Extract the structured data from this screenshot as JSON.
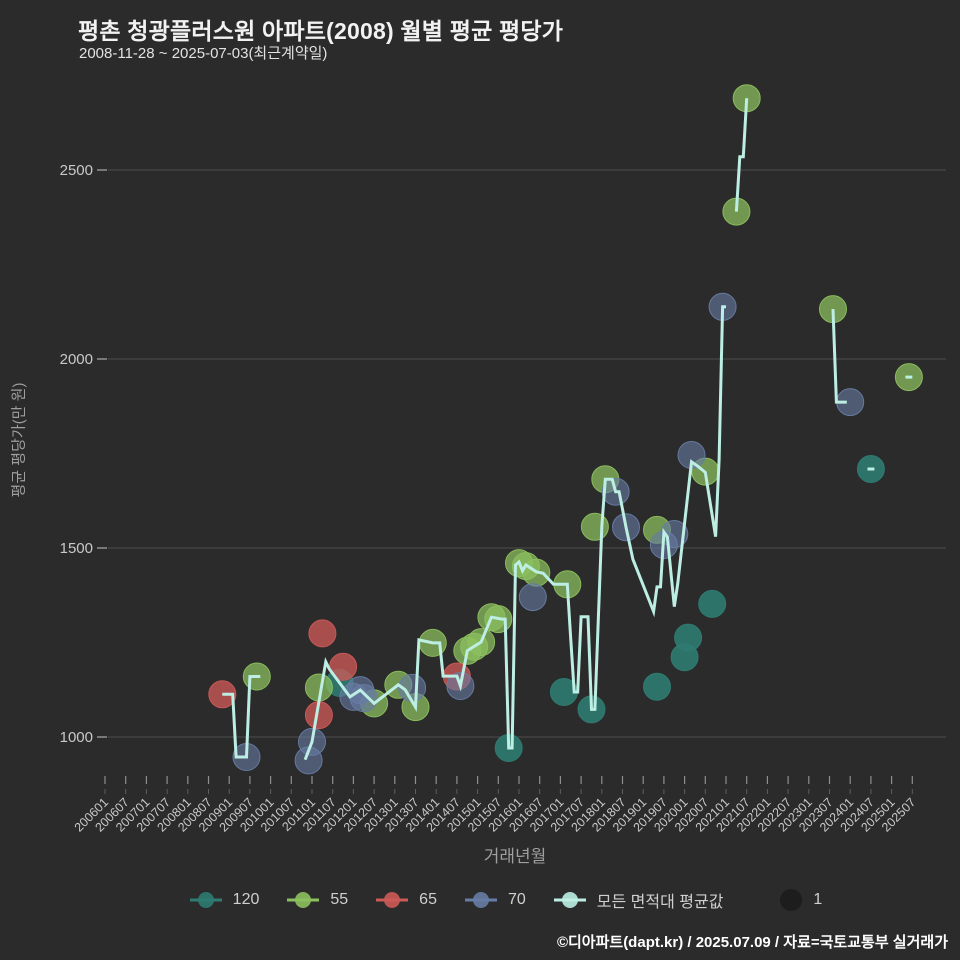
{
  "chart_data": {
    "type": "scatter",
    "title": "평촌 청광플러스원 아파트(2008) 월별 평균 평당가",
    "subtitle": "2008-11-28 ~ 2025-07-03(최근계약일)",
    "xlabel": "거래년월",
    "ylabel": "평균 평당가(만 원)",
    "ylim": [
      875,
      2725
    ],
    "xlim": [
      "200601",
      "202507"
    ],
    "grid": "horizontal",
    "legend_position": "bottom",
    "y_ticks": [
      1000,
      1500,
      2000,
      2500
    ],
    "x_ticks": [
      "200601",
      "200607",
      "200701",
      "200707",
      "200801",
      "200807",
      "200901",
      "200907",
      "201001",
      "201007",
      "201101",
      "201107",
      "201201",
      "201207",
      "201301",
      "201307",
      "201401",
      "201407",
      "201501",
      "201507",
      "201601",
      "201607",
      "201701",
      "201707",
      "201801",
      "201807",
      "201901",
      "201907",
      "202001",
      "202007",
      "202101",
      "202107",
      "202201",
      "202207",
      "202301",
      "202307",
      "202401",
      "202407",
      "202501",
      "202507"
    ],
    "series": [
      {
        "name": "120",
        "color": "#2f7b71",
        "opacity": 0.9,
        "points": [
          [
            201109,
            1143
          ],
          [
            201510,
            971
          ],
          [
            201702,
            1119
          ],
          [
            201710,
            1073
          ],
          [
            201905,
            1133
          ],
          [
            202001,
            1211
          ],
          [
            202002,
            1263
          ],
          [
            202009,
            1352
          ],
          [
            202407,
            1709
          ]
        ]
      },
      {
        "name": "55",
        "color": "#8cc05e",
        "opacity": 0.72,
        "points": [
          [
            200909,
            1160
          ],
          [
            201103,
            1131
          ],
          [
            201207,
            1089
          ],
          [
            201302,
            1138
          ],
          [
            201307,
            1079
          ],
          [
            201312,
            1249
          ],
          [
            201410,
            1228
          ],
          [
            201412,
            1239
          ],
          [
            201502,
            1251
          ],
          [
            201505,
            1317
          ],
          [
            201507,
            1312
          ],
          [
            201601,
            1460
          ],
          [
            201603,
            1452
          ],
          [
            201606,
            1435
          ],
          [
            201703,
            1404
          ],
          [
            201711,
            1556
          ],
          [
            201802,
            1682
          ],
          [
            201905,
            1548
          ],
          [
            202007,
            1702
          ],
          [
            202104,
            2390
          ],
          [
            202107,
            2690
          ],
          [
            202308,
            2132
          ],
          [
            202506,
            1952
          ]
        ]
      },
      {
        "name": "65",
        "color": "#cc5a57",
        "opacity": 0.78,
        "points": [
          [
            200811,
            1113
          ],
          [
            201103,
            1058
          ],
          [
            201104,
            1274
          ],
          [
            201110,
            1186
          ],
          [
            201407,
            1160
          ]
        ]
      },
      {
        "name": "70",
        "color": "#677ca4",
        "opacity": 0.6,
        "points": [
          [
            200906,
            947
          ],
          [
            201012,
            938
          ],
          [
            201101,
            987
          ],
          [
            201201,
            1106
          ],
          [
            201203,
            1124
          ],
          [
            201204,
            1103
          ],
          [
            201306,
            1130
          ],
          [
            201408,
            1135
          ],
          [
            201605,
            1370
          ],
          [
            201805,
            1649
          ],
          [
            201808,
            1555
          ],
          [
            201907,
            1508
          ],
          [
            201910,
            1537
          ],
          [
            202003,
            1746
          ],
          [
            202012,
            2138
          ],
          [
            202401,
            1886
          ]
        ]
      }
    ],
    "avg_line": {
      "name": "모든 면적대 평균값",
      "color": "#bdeee3",
      "segments": [
        [
          [
            200811,
            1113
          ],
          [
            200902,
            1113
          ],
          [
            200903,
            947
          ],
          [
            200906,
            947
          ],
          [
            200907,
            1160
          ],
          [
            200910,
            1160
          ]
        ],
        [
          [
            201011,
            940
          ],
          [
            201101,
            987
          ],
          [
            201105,
            1199
          ],
          [
            201106,
            1180
          ],
          [
            201109,
            1143
          ],
          [
            201112,
            1106
          ],
          [
            201203,
            1124
          ],
          [
            201207,
            1089
          ],
          [
            201302,
            1138
          ],
          [
            201304,
            1125
          ],
          [
            201307,
            1079
          ],
          [
            201308,
            1257
          ],
          [
            201312,
            1249
          ],
          [
            201402,
            1249
          ],
          [
            201403,
            1161
          ],
          [
            201407,
            1161
          ],
          [
            201408,
            1135
          ],
          [
            201410,
            1228
          ],
          [
            201412,
            1240
          ],
          [
            201502,
            1251
          ],
          [
            201505,
            1317
          ],
          [
            201508,
            1312
          ],
          [
            201509,
            1312
          ],
          [
            201510,
            971
          ],
          [
            201511,
            971
          ],
          [
            201512,
            1455
          ],
          [
            201601,
            1463
          ],
          [
            201602,
            1440
          ],
          [
            201603,
            1455
          ],
          [
            201606,
            1437
          ],
          [
            201608,
            1433
          ],
          [
            201611,
            1404
          ],
          [
            201703,
            1404
          ],
          [
            201704,
            1257
          ],
          [
            201705,
            1119
          ],
          [
            201706,
            1119
          ],
          [
            201707,
            1318
          ],
          [
            201709,
            1318
          ],
          [
            201710,
            1073
          ],
          [
            201711,
            1073
          ],
          [
            201712,
            1318
          ],
          [
            201801,
            1556
          ],
          [
            201802,
            1682
          ],
          [
            201804,
            1682
          ],
          [
            201805,
            1649
          ],
          [
            201806,
            1649
          ],
          [
            201808,
            1555
          ],
          [
            201810,
            1470
          ],
          [
            201904,
            1332
          ],
          [
            201905,
            1397
          ],
          [
            201906,
            1397
          ],
          [
            201907,
            1542
          ],
          [
            201908,
            1529
          ],
          [
            201910,
            1345
          ],
          [
            201911,
            1405
          ],
          [
            202003,
            1728
          ],
          [
            202005,
            1715
          ],
          [
            202007,
            1700
          ],
          [
            202010,
            1530
          ],
          [
            202011,
            1733
          ],
          [
            202012,
            2138
          ],
          [
            202101,
            2138
          ]
        ],
        [
          [
            202104,
            2390
          ],
          [
            202105,
            2535
          ],
          [
            202106,
            2535
          ],
          [
            202107,
            2690
          ]
        ],
        [
          [
            202308,
            2132
          ],
          [
            202309,
            1886
          ],
          [
            202312,
            1886
          ]
        ],
        [
          [
            202406,
            1709
          ],
          [
            202408,
            1709
          ]
        ],
        [
          [
            202505,
            1952
          ],
          [
            202507,
            1952
          ]
        ]
      ]
    },
    "size_legend": {
      "label": "1",
      "dot_color": "#1d1d1d"
    }
  },
  "footer": {
    "credit": "©디아파트(dapt.kr) / 2025.07.09 / 자료=국토교통부 실거래가"
  }
}
